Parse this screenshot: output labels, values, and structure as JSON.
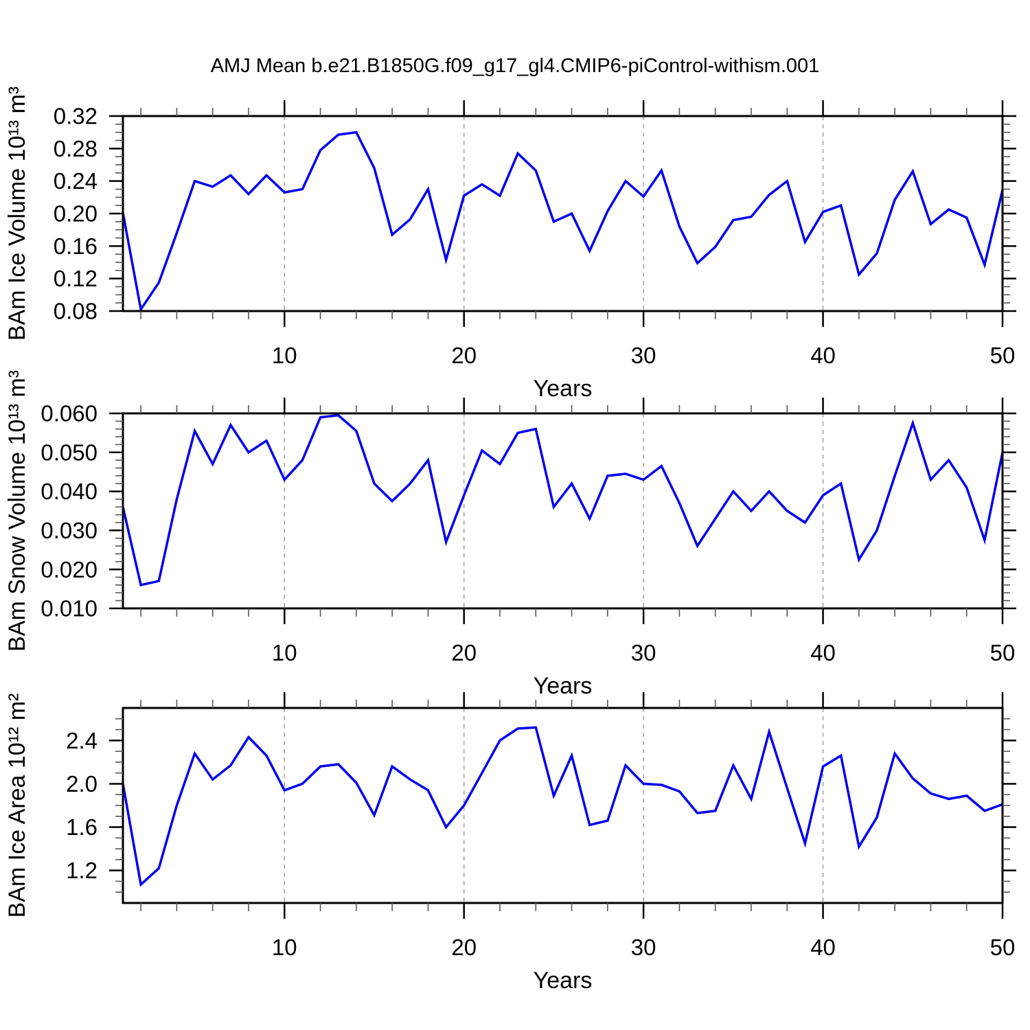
{
  "title": "AMJ Mean b.e21.B1850G.f09_g17_gl4.CMIP6-piControl-withism.001",
  "line_color": "#0000f0",
  "grid_color": "#9e9e9e",
  "axis_color": "#000000",
  "minor_tick_color": "#555555",
  "chart_data": [
    {
      "type": "line",
      "name": "bam-ice-volume",
      "ylabel": "BAm Ice Volume 10¹³ m³",
      "xlabel": "Years",
      "ylim": [
        0.08,
        0.32
      ],
      "xlim": [
        1,
        50
      ],
      "yticks": [
        {
          "v": 0.08,
          "label": "0.08"
        },
        {
          "v": 0.12,
          "label": "0.12"
        },
        {
          "v": 0.16,
          "label": "0.16"
        },
        {
          "v": 0.2,
          "label": "0.20"
        },
        {
          "v": 0.24,
          "label": "0.24"
        },
        {
          "v": 0.28,
          "label": "0.28"
        },
        {
          "v": 0.32,
          "label": "0.32"
        }
      ],
      "y_minor_step": 0.01,
      "xticks": [
        10,
        20,
        30,
        40,
        50
      ],
      "x_minor_step": 2,
      "gridlines": [
        10,
        20,
        30,
        40
      ],
      "x": [
        1,
        2,
        3,
        4,
        5,
        6,
        7,
        8,
        9,
        10,
        11,
        12,
        13,
        14,
        15,
        16,
        17,
        18,
        19,
        20,
        21,
        22,
        23,
        24,
        25,
        26,
        27,
        28,
        29,
        30,
        31,
        32,
        33,
        34,
        35,
        36,
        37,
        38,
        39,
        40,
        41,
        42,
        43,
        44,
        45,
        46,
        47,
        48,
        49,
        50
      ],
      "values": [
        0.201,
        0.082,
        0.115,
        0.176,
        0.24,
        0.233,
        0.247,
        0.224,
        0.247,
        0.226,
        0.23,
        0.278,
        0.297,
        0.3,
        0.256,
        0.174,
        0.193,
        0.23,
        0.143,
        0.222,
        0.236,
        0.222,
        0.274,
        0.253,
        0.19,
        0.2,
        0.154,
        0.203,
        0.24,
        0.221,
        0.253,
        0.184,
        0.139,
        0.159,
        0.192,
        0.196,
        0.223,
        0.24,
        0.165,
        0.202,
        0.21,
        0.125,
        0.151,
        0.217,
        0.252,
        0.187,
        0.205,
        0.195,
        0.137,
        0.229
      ]
    },
    {
      "type": "line",
      "name": "bam-snow-volume",
      "ylabel": "BAm Snow Volume 10¹³ m³",
      "xlabel": "Years",
      "ylim": [
        0.01,
        0.06
      ],
      "xlim": [
        1,
        50
      ],
      "yticks": [
        {
          "v": 0.01,
          "label": "0.010"
        },
        {
          "v": 0.02,
          "label": "0.020"
        },
        {
          "v": 0.03,
          "label": "0.030"
        },
        {
          "v": 0.04,
          "label": "0.040"
        },
        {
          "v": 0.05,
          "label": "0.050"
        },
        {
          "v": 0.06,
          "label": "0.060"
        }
      ],
      "y_minor_step": 0.002,
      "xticks": [
        10,
        20,
        30,
        40,
        50
      ],
      "x_minor_step": 2,
      "gridlines": [
        10,
        20,
        30,
        40
      ],
      "x": [
        1,
        2,
        3,
        4,
        5,
        6,
        7,
        8,
        9,
        10,
        11,
        12,
        13,
        14,
        15,
        16,
        17,
        18,
        19,
        20,
        21,
        22,
        23,
        24,
        25,
        26,
        27,
        28,
        29,
        30,
        31,
        32,
        33,
        34,
        35,
        36,
        37,
        38,
        39,
        40,
        41,
        42,
        43,
        44,
        45,
        46,
        47,
        48,
        49,
        50
      ],
      "values": [
        0.036,
        0.016,
        0.017,
        0.038,
        0.0555,
        0.047,
        0.057,
        0.05,
        0.053,
        0.043,
        0.048,
        0.059,
        0.0595,
        0.0555,
        0.042,
        0.0375,
        0.042,
        0.048,
        0.027,
        0.039,
        0.0505,
        0.047,
        0.055,
        0.056,
        0.036,
        0.042,
        0.033,
        0.044,
        0.0445,
        0.043,
        0.0465,
        0.037,
        0.026,
        0.033,
        0.04,
        0.035,
        0.04,
        0.035,
        0.032,
        0.039,
        0.042,
        0.0225,
        0.03,
        0.044,
        0.0575,
        0.043,
        0.048,
        0.041,
        0.0275,
        0.05
      ]
    },
    {
      "type": "line",
      "name": "bam-ice-area",
      "ylabel": "BAm Ice Area 10¹² m²",
      "xlabel": "Years",
      "ylim": [
        0.9,
        2.7
      ],
      "xlim": [
        1,
        50
      ],
      "yticks": [
        {
          "v": 1.2,
          "label": "1.2"
        },
        {
          "v": 1.6,
          "label": "1.6"
        },
        {
          "v": 2.0,
          "label": "2.0"
        },
        {
          "v": 2.4,
          "label": "2.4"
        }
      ],
      "y_minor_step": 0.1,
      "xticks": [
        10,
        20,
        30,
        40,
        50
      ],
      "x_minor_step": 2,
      "gridlines": [
        10,
        20,
        30,
        40
      ],
      "x": [
        1,
        2,
        3,
        4,
        5,
        6,
        7,
        8,
        9,
        10,
        11,
        12,
        13,
        14,
        15,
        16,
        17,
        18,
        19,
        20,
        21,
        22,
        23,
        24,
        25,
        26,
        27,
        28,
        29,
        30,
        31,
        32,
        33,
        34,
        35,
        36,
        37,
        38,
        39,
        40,
        41,
        42,
        43,
        44,
        45,
        46,
        47,
        48,
        49,
        50
      ],
      "values": [
        2.0,
        1.07,
        1.22,
        1.8,
        2.28,
        2.04,
        2.17,
        2.43,
        2.26,
        1.94,
        2.0,
        2.16,
        2.18,
        2.01,
        1.71,
        2.16,
        2.04,
        1.94,
        1.6,
        1.8,
        2.1,
        2.4,
        2.51,
        2.52,
        1.89,
        2.26,
        1.62,
        1.66,
        2.17,
        2.0,
        1.99,
        1.93,
        1.73,
        1.75,
        2.17,
        1.86,
        2.48,
        1.96,
        1.45,
        2.16,
        2.26,
        1.42,
        1.69,
        2.28,
        2.05,
        1.91,
        1.86,
        1.89,
        1.75,
        1.81
      ]
    }
  ]
}
